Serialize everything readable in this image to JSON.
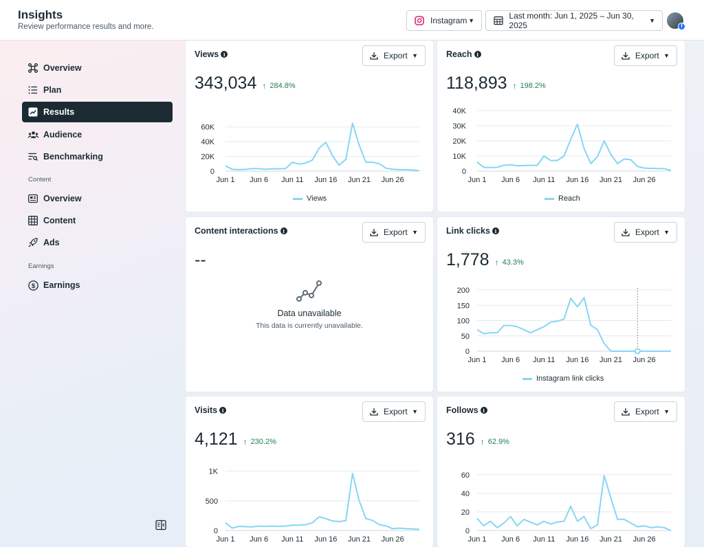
{
  "header": {
    "title": "Insights",
    "subtitle": "Review performance results and more.",
    "platform_label": "Instagram",
    "date_range_label": "Last month: Jun 1, 2025 – Jun 30, 2025"
  },
  "sidebar": {
    "items": [
      {
        "label": "Overview",
        "icon": "overview-icon"
      },
      {
        "label": "Plan",
        "icon": "list-icon"
      },
      {
        "label": "Results",
        "icon": "trend-icon",
        "active": true
      },
      {
        "label": "Audience",
        "icon": "people-icon"
      },
      {
        "label": "Benchmarking",
        "icon": "benchmark-icon"
      }
    ],
    "content_section": "Content",
    "content_items": [
      {
        "label": "Overview",
        "icon": "content-overview-icon"
      },
      {
        "label": "Content",
        "icon": "grid-icon"
      },
      {
        "label": "Ads",
        "icon": "rocket-icon"
      }
    ],
    "earnings_section": "Earnings",
    "earnings_items": [
      {
        "label": "Earnings",
        "icon": "dollar-icon"
      }
    ]
  },
  "common": {
    "export_label": "Export",
    "x_ticks": [
      "Jun 1",
      "Jun 6",
      "Jun 11",
      "Jun 16",
      "Jun 21",
      "Jun 26"
    ]
  },
  "cards": {
    "views": {
      "title": "Views",
      "value": "343,034",
      "delta": "284.8%",
      "legend": "Views"
    },
    "reach": {
      "title": "Reach",
      "value": "118,893",
      "delta": "198.2%",
      "legend": "Reach"
    },
    "interactions": {
      "title": "Content interactions",
      "value": "--",
      "unavailable_title": "Data unavailable",
      "unavailable_text": "This data is currently unavailable."
    },
    "link_clicks": {
      "title": "Link clicks",
      "value": "1,778",
      "delta": "43.3%",
      "legend": "Instagram link clicks"
    },
    "visits": {
      "title": "Visits",
      "value": "4,121",
      "delta": "230.2%"
    },
    "follows": {
      "title": "Follows",
      "value": "316",
      "delta": "62.9%"
    }
  },
  "colors": {
    "line": "#85d6f4",
    "accent_dark": "#1c2b33",
    "delta_green": "#1f7f4b"
  },
  "chart_data": [
    {
      "type": "line",
      "title": "Views",
      "x": [
        "Jun 1",
        "Jun 2",
        "Jun 3",
        "Jun 4",
        "Jun 5",
        "Jun 6",
        "Jun 7",
        "Jun 8",
        "Jun 9",
        "Jun 10",
        "Jun 11",
        "Jun 12",
        "Jun 13",
        "Jun 14",
        "Jun 15",
        "Jun 16",
        "Jun 17",
        "Jun 18",
        "Jun 19",
        "Jun 20",
        "Jun 21",
        "Jun 22",
        "Jun 23",
        "Jun 24",
        "Jun 25",
        "Jun 26",
        "Jun 27",
        "Jun 28",
        "Jun 29",
        "Jun 30"
      ],
      "y_ticks": [
        "0",
        "20K",
        "40K",
        "60K"
      ],
      "ylim": [
        0,
        70000
      ],
      "series": [
        {
          "name": "Views",
          "values": [
            7000,
            2500,
            2000,
            2300,
            3500,
            3200,
            2600,
            3200,
            3000,
            3500,
            12000,
            9500,
            11000,
            15000,
            31000,
            39000,
            21000,
            8000,
            16000,
            65000,
            35000,
            12000,
            12000,
            10000,
            4000,
            2500,
            2000,
            2000,
            1500,
            500
          ]
        }
      ]
    },
    {
      "type": "line",
      "title": "Reach",
      "x": [
        "Jun 1",
        "Jun 2",
        "Jun 3",
        "Jun 4",
        "Jun 5",
        "Jun 6",
        "Jun 7",
        "Jun 8",
        "Jun 9",
        "Jun 10",
        "Jun 11",
        "Jun 12",
        "Jun 13",
        "Jun 14",
        "Jun 15",
        "Jun 16",
        "Jun 17",
        "Jun 18",
        "Jun 19",
        "Jun 20",
        "Jun 21",
        "Jun 22",
        "Jun 23",
        "Jun 24",
        "Jun 25",
        "Jun 26",
        "Jun 27",
        "Jun 28",
        "Jun 29",
        "Jun 30"
      ],
      "y_ticks": [
        "0",
        "10K",
        "20K",
        "30K",
        "40K"
      ],
      "ylim": [
        0,
        40000
      ],
      "series": [
        {
          "name": "Reach",
          "values": [
            6000,
            2500,
            2300,
            2500,
            3800,
            4200,
            3500,
            3700,
            3800,
            3800,
            10000,
            7000,
            7000,
            10000,
            21000,
            31000,
            15000,
            5000,
            9500,
            20000,
            11000,
            5000,
            8000,
            7500,
            3000,
            2000,
            1800,
            1700,
            1600,
            500
          ]
        }
      ]
    },
    {
      "type": "line",
      "title": "Link clicks",
      "x": [
        "Jun 1",
        "Jun 2",
        "Jun 3",
        "Jun 4",
        "Jun 5",
        "Jun 6",
        "Jun 7",
        "Jun 8",
        "Jun 9",
        "Jun 10",
        "Jun 11",
        "Jun 12",
        "Jun 13",
        "Jun 14",
        "Jun 15",
        "Jun 16",
        "Jun 17",
        "Jun 18",
        "Jun 19",
        "Jun 20",
        "Jun 21",
        "Jun 22",
        "Jun 23",
        "Jun 24",
        "Jun 25",
        "Jun 26",
        "Jun 27",
        "Jun 28",
        "Jun 29",
        "Jun 30"
      ],
      "y_ticks": [
        "0",
        "50",
        "100",
        "150",
        "200"
      ],
      "ylim": [
        0,
        200
      ],
      "series": [
        {
          "name": "Instagram link clicks",
          "values": [
            70,
            57,
            60,
            60,
            84,
            84,
            80,
            70,
            60,
            70,
            80,
            95,
            98,
            105,
            173,
            145,
            175,
            85,
            70,
            25,
            0,
            0,
            0,
            0,
            0,
            0,
            0,
            0,
            0,
            0
          ]
        }
      ]
    },
    {
      "type": "line",
      "title": "Visits",
      "x": [
        "Jun 1",
        "Jun 2",
        "Jun 3",
        "Jun 4",
        "Jun 5",
        "Jun 6",
        "Jun 7",
        "Jun 8",
        "Jun 9",
        "Jun 10",
        "Jun 11",
        "Jun 12",
        "Jun 13",
        "Jun 14",
        "Jun 15",
        "Jun 16",
        "Jun 17",
        "Jun 18",
        "Jun 19",
        "Jun 20",
        "Jun 21",
        "Jun 22",
        "Jun 23",
        "Jun 24",
        "Jun 25",
        "Jun 26",
        "Jun 27",
        "Jun 28",
        "Jun 29",
        "Jun 30"
      ],
      "y_ticks": [
        "0",
        "500",
        "1K"
      ],
      "ylim": [
        0,
        1100
      ],
      "series": [
        {
          "name": "Visits",
          "values": [
            130,
            40,
            70,
            65,
            60,
            75,
            70,
            75,
            70,
            75,
            90,
            90,
            100,
            130,
            230,
            200,
            160,
            150,
            165,
            960,
            500,
            200,
            170,
            100,
            80,
            30,
            40,
            30,
            25,
            20
          ]
        }
      ]
    },
    {
      "type": "line",
      "title": "Follows",
      "x": [
        "Jun 1",
        "Jun 2",
        "Jun 3",
        "Jun 4",
        "Jun 5",
        "Jun 6",
        "Jun 7",
        "Jun 8",
        "Jun 9",
        "Jun 10",
        "Jun 11",
        "Jun 12",
        "Jun 13",
        "Jun 14",
        "Jun 15",
        "Jun 16",
        "Jun 17",
        "Jun 18",
        "Jun 19",
        "Jun 20",
        "Jun 21",
        "Jun 22",
        "Jun 23",
        "Jun 24",
        "Jun 25",
        "Jun 26",
        "Jun 27",
        "Jun 28",
        "Jun 29",
        "Jun 30"
      ],
      "y_ticks": [
        "0",
        "20",
        "40",
        "60"
      ],
      "ylim": [
        0,
        65
      ],
      "series": [
        {
          "name": "Follows",
          "values": [
            13,
            5,
            10,
            3,
            8,
            15,
            5,
            12,
            9,
            6,
            10,
            7,
            9,
            10,
            26,
            10,
            15,
            2,
            6,
            59,
            35,
            12,
            12,
            8,
            4,
            5,
            3,
            4,
            3,
            0
          ]
        }
      ]
    }
  ]
}
